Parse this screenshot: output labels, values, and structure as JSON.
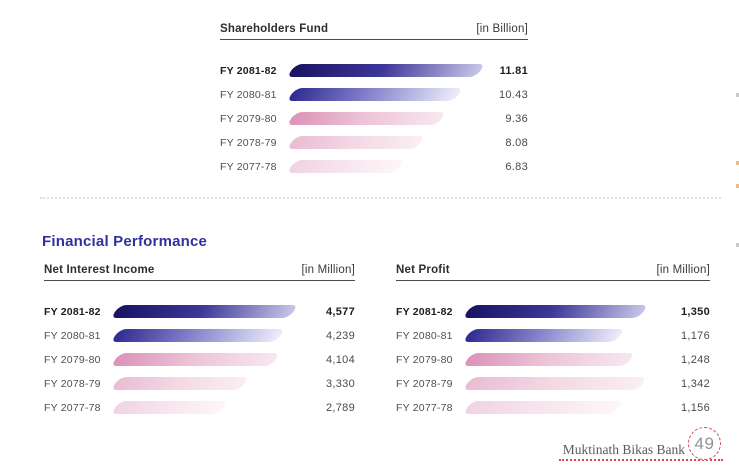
{
  "section_heading": "Financial Performance",
  "chart_data": [
    {
      "type": "bar",
      "orientation": "horizontal",
      "title": "Shareholders Fund",
      "unit_label": "[in Billion]",
      "categories": [
        "FY 2081-82",
        "FY 2080-81",
        "FY 2079-80",
        "FY 2078-79",
        "FY 2077-78"
      ],
      "values": [
        11.81,
        10.43,
        9.36,
        8.08,
        6.83
      ],
      "value_labels": [
        "11.81",
        "10.43",
        "9.36",
        "8.08",
        "6.83"
      ],
      "legend": "none",
      "grid": "off"
    },
    {
      "type": "bar",
      "orientation": "horizontal",
      "title": "Net Interest Income",
      "unit_label": "[in Million]",
      "categories": [
        "FY 2081-82",
        "FY 2080-81",
        "FY 2079-80",
        "FY 2078-79",
        "FY 2077-78"
      ],
      "values": [
        4577,
        4239,
        4104,
        3330,
        2789
      ],
      "value_labels": [
        "4,577",
        "4,239",
        "4,104",
        "3,330",
        "2,789"
      ],
      "legend": "none",
      "grid": "off"
    },
    {
      "type": "bar",
      "orientation": "horizontal",
      "title": "Net Profit",
      "unit_label": "[in Million]",
      "categories": [
        "FY 2081-82",
        "FY 2080-81",
        "FY 2079-80",
        "FY 2078-79",
        "FY 2077-78"
      ],
      "values": [
        1350,
        1176,
        1248,
        1342,
        1156
      ],
      "value_labels": [
        "1,350",
        "1,176",
        "1,248",
        "1,342",
        "1,156"
      ],
      "legend": "none",
      "grid": "off"
    }
  ],
  "colors": {
    "heading_blue": "#31309e",
    "accent_red": "#d9484d",
    "bar_palettes": [
      [
        "#191363",
        "#3d3799",
        "#c9c6e8"
      ],
      [
        "#2e2b92",
        "#8886cc",
        "#eeeefa"
      ],
      [
        "#db93b6",
        "#ecc3d7",
        "#f8e7ef"
      ],
      [
        "#e9bcd2",
        "#f3d8e5",
        "#faeef4"
      ],
      [
        "#f0d3e1",
        "#f7e5ee",
        "#fdf6f9"
      ]
    ]
  },
  "footer": {
    "bank_name": "Muktinath Bikas Bank",
    "page_number": "49"
  }
}
